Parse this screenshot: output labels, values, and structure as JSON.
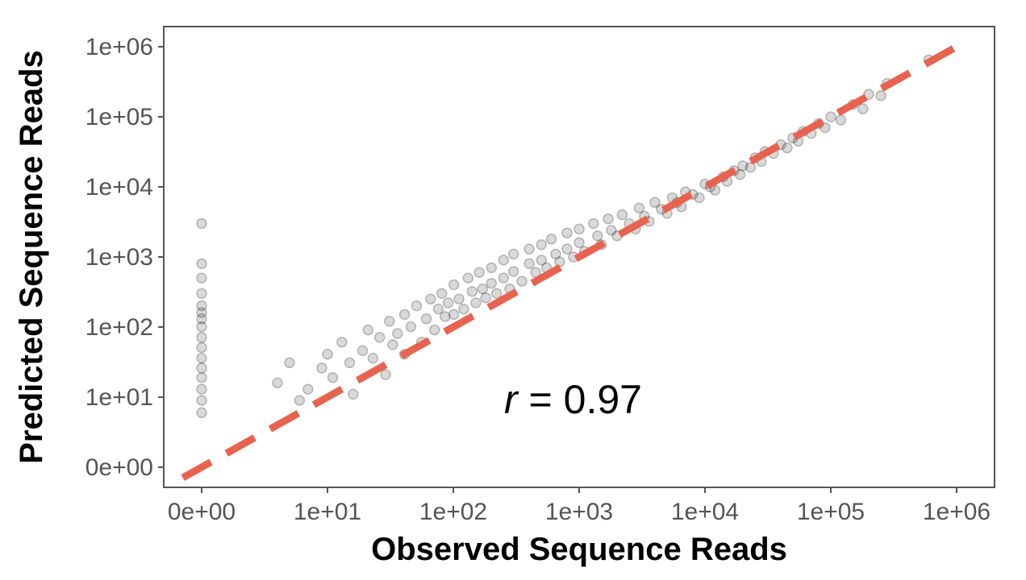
{
  "chart_data": {
    "type": "scatter",
    "title": "",
    "xlabel": "Observed Sequence Reads",
    "ylabel": "Predicted Sequence Reads",
    "x_scale": "pseudo-log10",
    "y_scale": "pseudo-log10",
    "x_ticks": [
      "0e+00",
      "1e+01",
      "1e+02",
      "1e+03",
      "1e+04",
      "1e+05",
      "1e+06"
    ],
    "y_ticks": [
      "0e+00",
      "1e+01",
      "1e+02",
      "1e+03",
      "1e+04",
      "1e+05",
      "1e+06"
    ],
    "xlim": [
      0,
      1000000
    ],
    "ylim": [
      0,
      1000000
    ],
    "grid": false,
    "legend": "none",
    "point_color": "#000000",
    "point_alpha": 0.15,
    "reference_line": {
      "type": "identity",
      "style": "dashed",
      "color": "#E8634F"
    },
    "annotation": {
      "symbol": "r",
      "eq": " = ",
      "value": "0.97"
    },
    "series": [
      {
        "note_points": "approximate sample of the point cloud",
        "points": [
          [
            0,
            5
          ],
          [
            0,
            8
          ],
          [
            0,
            12
          ],
          [
            0,
            18
          ],
          [
            0,
            25
          ],
          [
            0,
            35
          ],
          [
            0,
            50
          ],
          [
            0,
            70
          ],
          [
            0,
            100
          ],
          [
            0,
            130
          ],
          [
            0,
            160
          ],
          [
            0,
            200
          ],
          [
            0,
            300
          ],
          [
            0,
            500
          ],
          [
            0,
            800
          ],
          [
            0,
            3000
          ],
          [
            3,
            15
          ],
          [
            4,
            30
          ],
          [
            5,
            8
          ],
          [
            6,
            12
          ],
          [
            8,
            25
          ],
          [
            9,
            40
          ],
          [
            10,
            18
          ],
          [
            12,
            60
          ],
          [
            14,
            30
          ],
          [
            15,
            10
          ],
          [
            18,
            45
          ],
          [
            20,
            90
          ],
          [
            22,
            35
          ],
          [
            25,
            70
          ],
          [
            28,
            20
          ],
          [
            30,
            120
          ],
          [
            32,
            55
          ],
          [
            35,
            80
          ],
          [
            40,
            150
          ],
          [
            40,
            40
          ],
          [
            45,
            100
          ],
          [
            50,
            200
          ],
          [
            55,
            60
          ],
          [
            60,
            130
          ],
          [
            65,
            250
          ],
          [
            70,
            90
          ],
          [
            75,
            180
          ],
          [
            80,
            300
          ],
          [
            85,
            140
          ],
          [
            90,
            220
          ],
          [
            100,
            400
          ],
          [
            100,
            150
          ],
          [
            110,
            250
          ],
          [
            120,
            180
          ],
          [
            130,
            500
          ],
          [
            140,
            320
          ],
          [
            150,
            220
          ],
          [
            160,
            600
          ],
          [
            170,
            350
          ],
          [
            180,
            260
          ],
          [
            200,
            700
          ],
          [
            200,
            420
          ],
          [
            220,
            300
          ],
          [
            250,
            900
          ],
          [
            250,
            500
          ],
          [
            280,
            350
          ],
          [
            300,
            1100
          ],
          [
            300,
            620
          ],
          [
            350,
            450
          ],
          [
            400,
            1300
          ],
          [
            400,
            800
          ],
          [
            450,
            600
          ],
          [
            500,
            1500
          ],
          [
            500,
            900
          ],
          [
            550,
            700
          ],
          [
            600,
            1800
          ],
          [
            650,
            1100
          ],
          [
            700,
            850
          ],
          [
            800,
            2200
          ],
          [
            800,
            1300
          ],
          [
            900,
            1000
          ],
          [
            1000,
            2500
          ],
          [
            1000,
            1600
          ],
          [
            1100,
            1200
          ],
          [
            1300,
            3000
          ],
          [
            1400,
            2000
          ],
          [
            1500,
            1500
          ],
          [
            1700,
            3500
          ],
          [
            1800,
            2400
          ],
          [
            2000,
            2000
          ],
          [
            2200,
            4000
          ],
          [
            2500,
            3000
          ],
          [
            2800,
            2500
          ],
          [
            3000,
            5000
          ],
          [
            3300,
            3800
          ],
          [
            3600,
            3200
          ],
          [
            4000,
            6000
          ],
          [
            4500,
            4800
          ],
          [
            5000,
            4200
          ],
          [
            5500,
            7000
          ],
          [
            6000,
            6000
          ],
          [
            6500,
            5200
          ],
          [
            7000,
            8500
          ],
          [
            8000,
            7800
          ],
          [
            9000,
            7000
          ],
          [
            10000,
            11000
          ],
          [
            11000,
            10000
          ],
          [
            12000,
            9000
          ],
          [
            14000,
            14000
          ],
          [
            15000,
            12000
          ],
          [
            17000,
            17000
          ],
          [
            19000,
            15000
          ],
          [
            20000,
            20000
          ],
          [
            23000,
            19000
          ],
          [
            25000,
            26000
          ],
          [
            28000,
            23000
          ],
          [
            30000,
            32000
          ],
          [
            35000,
            30000
          ],
          [
            40000,
            40000
          ],
          [
            45000,
            36000
          ],
          [
            50000,
            50000
          ],
          [
            55000,
            45000
          ],
          [
            60000,
            62000
          ],
          [
            70000,
            58000
          ],
          [
            80000,
            80000
          ],
          [
            90000,
            70000
          ],
          [
            100000,
            100000
          ],
          [
            120000,
            90000
          ],
          [
            150000,
            150000
          ],
          [
            180000,
            130000
          ],
          [
            200000,
            210000
          ],
          [
            250000,
            200000
          ],
          [
            280000,
            300000
          ],
          [
            600000,
            650000
          ]
        ]
      }
    ]
  }
}
